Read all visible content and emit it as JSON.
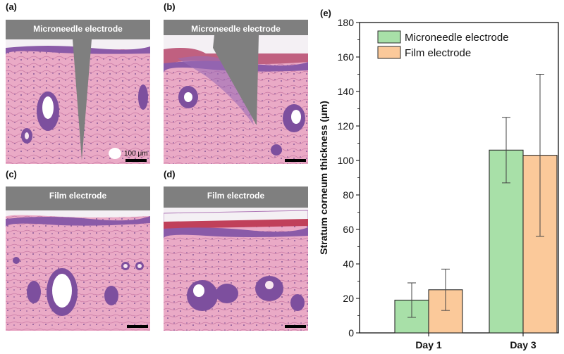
{
  "panels": [
    {
      "id": "a",
      "label": "(a)",
      "electrode": "Microneedle electrode",
      "scale": "100 μm"
    },
    {
      "id": "b",
      "label": "(b)",
      "electrode": "Microneedle electrode"
    },
    {
      "id": "c",
      "label": "(c)",
      "label2": "Film electrode",
      "electrode": "Film electrode"
    },
    {
      "id": "d",
      "label": "(d)",
      "electrode": "Film electrode"
    }
  ],
  "colors": {
    "microneedle": "#a8e0a8",
    "microneedle_edge": "#2b2b2b",
    "film": "#fbc99a",
    "tissue": "#e8a9c4",
    "epidermis": "#8a5aa8",
    "electrode": "#7f7f7f"
  },
  "chart_data": {
    "panel_label": "(e)",
    "type": "bar",
    "categories": [
      "Day 1",
      "Day 3"
    ],
    "series": [
      {
        "name": "Microneedle electrode",
        "values": [
          19,
          106
        ],
        "errors": [
          10,
          19
        ],
        "color": "#a8e0a8"
      },
      {
        "name": "Film electrode",
        "values": [
          25,
          103
        ],
        "errors": [
          12,
          47
        ],
        "color": "#fbc99a"
      }
    ],
    "xlabel": "",
    "ylabel": "Stratum corneum thickness (μm)",
    "ylim": [
      0,
      180
    ],
    "yticks": [
      0,
      20,
      40,
      60,
      80,
      100,
      120,
      140,
      160,
      180
    ],
    "legend_position": "top-left",
    "grid": false
  }
}
